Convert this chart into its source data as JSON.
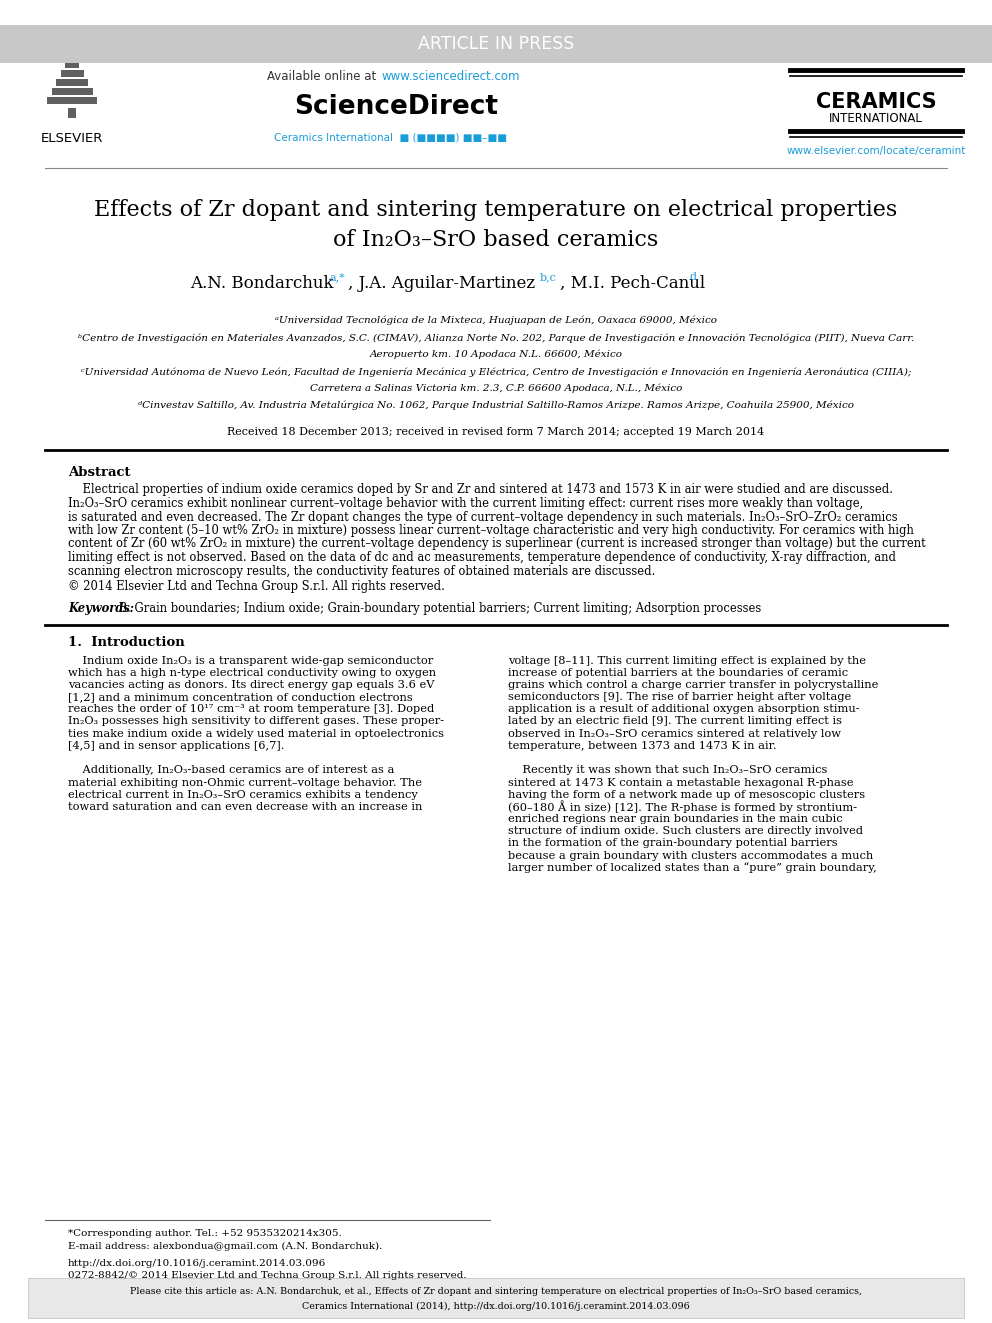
{
  "bg_color": "#ffffff",
  "article_in_press_bg": "#c8c8c8",
  "article_in_press_text": "ARTICLE IN PRESS",
  "article_in_press_color": "#ffffff",
  "sciencedirect_url": "www.sciencedirect.com",
  "sciencedirect_url_color": "#1a9cd8",
  "sciencedirect_bold": "ScienceDirect",
  "ceramics_line1": "CERAMICS",
  "ceramics_line2": "INTERNATIONAL",
  "ceramics_journal_color": "#1a9cd8",
  "elsevier_url": "www.elsevier.com/locate/ceramint",
  "elsevier_url_color": "#1a9cd8",
  "title_line1": "Effects of Zr dopant and sintering temperature on electrical properties",
  "title_line2": "of In₂O₃–SrO based ceramics",
  "affil_a": "ᵃUniversidad Tecnológica de la Mixteca, Huajuapan de León, Oaxaca 69000, México",
  "affil_b": "ᵇCentro de Investigación en Materiales Avanzados, S.C. (CIMAV), Alianza Norte No. 202, Parque de Investigación e Innovación Tecnológica (PIIT), Nueva Carr.",
  "affil_b2": "Aeropuerto km. 10 Apodaca N.L. 66600, México",
  "affil_c": "ᶜUniversidad Autónoma de Nuevo León, Facultad de Ingeniería Mecánica y Eléctrica, Centro de Investigación e Innovación en Ingeniería Aeronáutica (CIIIA);",
  "affil_c2": "Carretera a Salinas Victoria km. 2.3, C.P. 66600 Apodaca, N.L., México",
  "affil_d": "ᵈCinvestav Saltillo, Av. Industria Metalúrgica No. 1062, Parque Industrial Saltillo-Ramos Arizpe. Ramos Arizpe, Coahuila 25900, México",
  "received": "Received 18 December 2013; received in revised form 7 March 2014; accepted 19 March 2014",
  "copyright": "© 2014 Elsevier Ltd and Techna Group S.r.l. All rights reserved.",
  "keywords_label": "Keywords:",
  "keywords_text": " B. Grain boundaries; Indium oxide; Grain-boundary potential barriers; Current limiting; Adsorption processes",
  "doi_text": "http://dx.doi.org/10.1016/j.ceramint.2014.03.096",
  "issn_text": "0272-8842/© 2014 Elsevier Ltd and Techna Group S.r.l. All rights reserved.",
  "cite_box_color": "#e8e8e8",
  "link_color": "#1a9cd8"
}
